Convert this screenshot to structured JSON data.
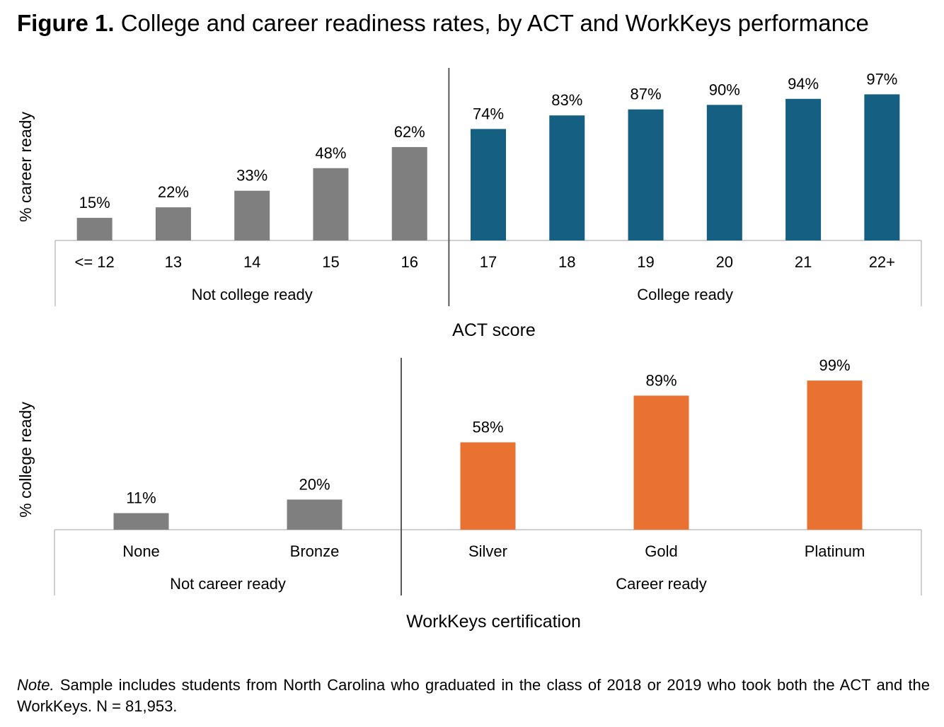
{
  "title": {
    "label": "Figure 1.",
    "text": "College and career readiness rates, by ACT and WorkKeys performance"
  },
  "chart_data": [
    {
      "type": "bar",
      "ylabel": "% career ready",
      "xlabel": "ACT score",
      "ylim": [
        0,
        100
      ],
      "categories": [
        "<= 12",
        "13",
        "14",
        "15",
        "16",
        "17",
        "18",
        "19",
        "20",
        "21",
        "22+"
      ],
      "values": [
        15,
        22,
        33,
        48,
        62,
        74,
        83,
        87,
        90,
        94,
        97
      ],
      "data_labels": [
        "15%",
        "22%",
        "33%",
        "48%",
        "62%",
        "74%",
        "83%",
        "87%",
        "90%",
        "94%",
        "97%"
      ],
      "groups": [
        {
          "label": "Not college ready",
          "start": 0,
          "end": 4,
          "color": "#7f7f7f"
        },
        {
          "label": "College ready",
          "start": 5,
          "end": 10,
          "color": "#156082"
        }
      ]
    },
    {
      "type": "bar",
      "ylabel": "% college ready",
      "xlabel": "WorkKeys certification",
      "ylim": [
        0,
        100
      ],
      "categories": [
        "None",
        "Bronze",
        "Silver",
        "Gold",
        "Platinum"
      ],
      "values": [
        11,
        20,
        58,
        89,
        99
      ],
      "data_labels": [
        "11%",
        "20%",
        "58%",
        "89%",
        "99%"
      ],
      "groups": [
        {
          "label": "Not career ready",
          "start": 0,
          "end": 1,
          "color": "#7f7f7f"
        },
        {
          "label": "Career ready",
          "start": 2,
          "end": 4,
          "color": "#e97132"
        }
      ]
    }
  ],
  "note": {
    "label": "Note.",
    "text": " Sample includes students from North Carolina who graduated in the class of 2018 or 2019 who took both the ACT and the WorkKeys. N = 81,953."
  }
}
